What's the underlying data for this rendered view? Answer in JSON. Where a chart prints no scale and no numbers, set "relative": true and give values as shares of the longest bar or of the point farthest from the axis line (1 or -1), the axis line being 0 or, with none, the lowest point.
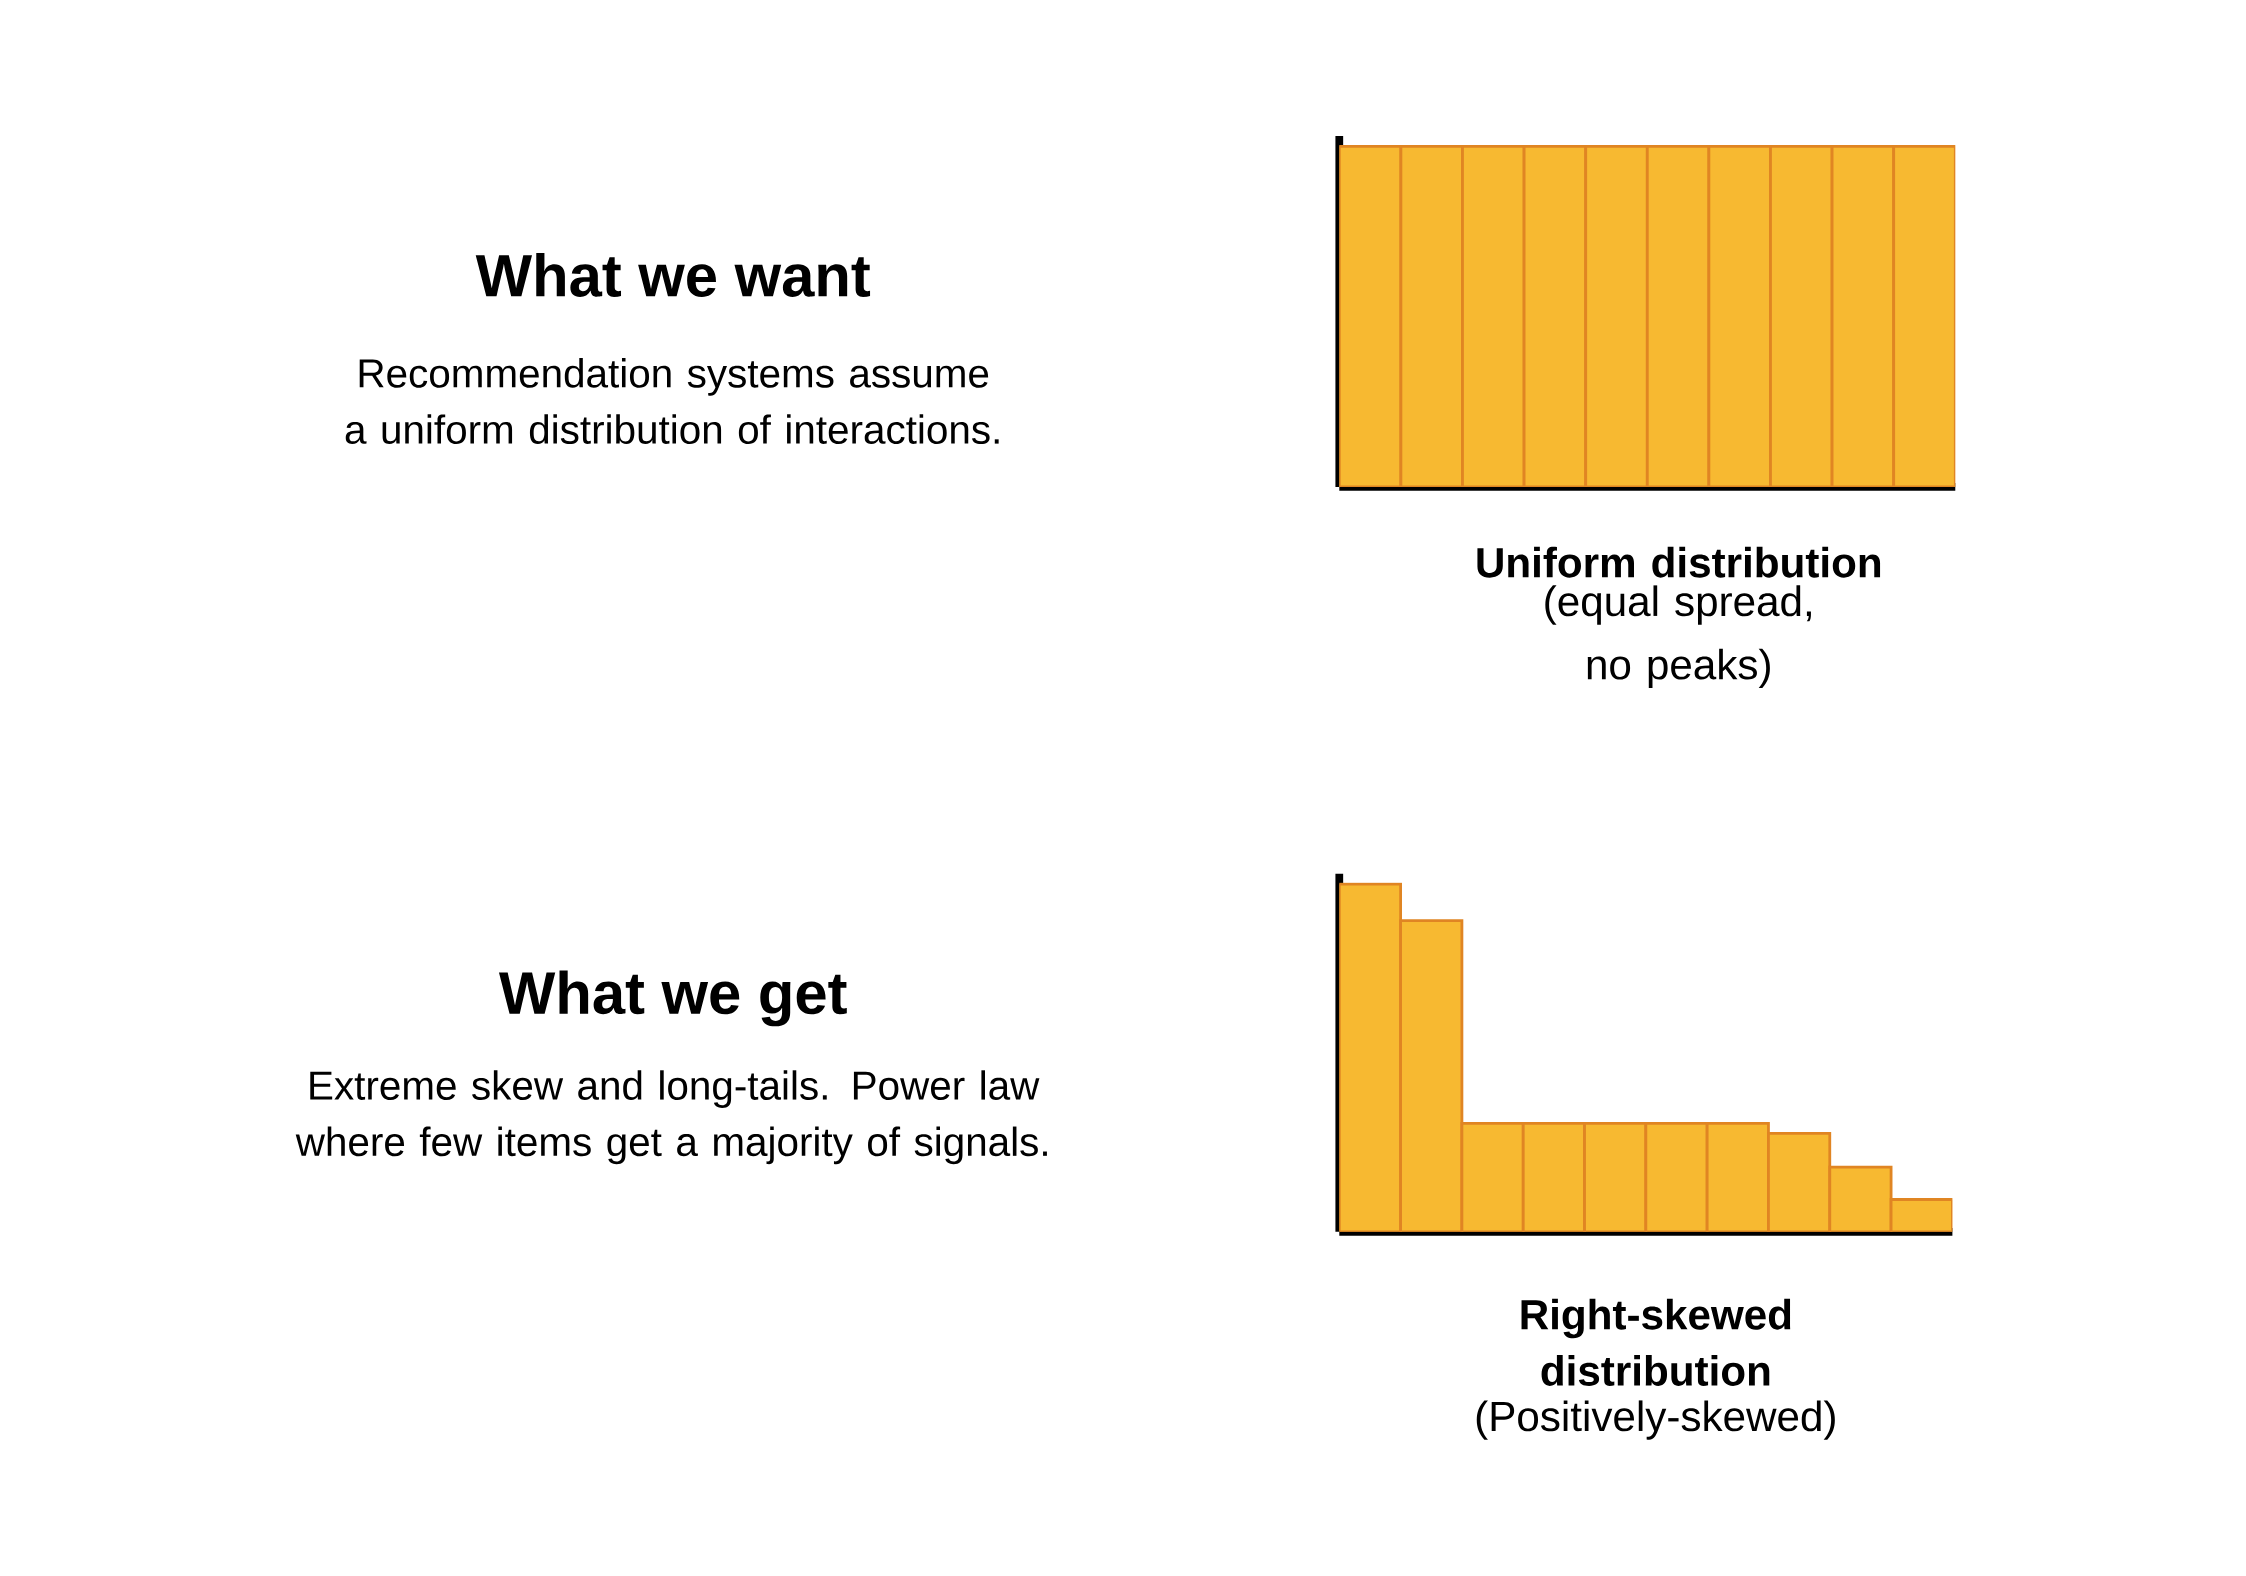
{
  "chart_data": [
    {
      "type": "other",
      "title": "What we want",
      "subtitle": "Recommendation systems assume a uniform distribution of interactions."
    },
    {
      "type": "bar",
      "relative": true,
      "categories": [
        null,
        null,
        null,
        null,
        null,
        null,
        null,
        null,
        null,
        null
      ],
      "values": [
        1,
        1,
        1,
        1,
        1,
        1,
        1,
        1,
        1,
        1
      ],
      "color": "#f7b931",
      "xlabel": "Uniform distribution",
      "subtitle": "(equal spread, no peaks)"
    },
    {
      "type": "other",
      "title": "What we get",
      "subtitle": "Extreme skew and long-tails. Power law where few items get a majority of signals."
    },
    {
      "type": "bar",
      "relative": true,
      "categories": [
        null,
        null,
        null,
        null,
        null,
        null,
        null,
        null,
        null,
        null
      ],
      "values": [
        1,
        0.895,
        0.312,
        0.312,
        0.312,
        0.312,
        0.312,
        0.283,
        0.186,
        0.093
      ],
      "color": "#f7b931",
      "xlabel": "Right-skewed distribution",
      "subtitle": "(Positively-skewed)"
    }
  ]
}
